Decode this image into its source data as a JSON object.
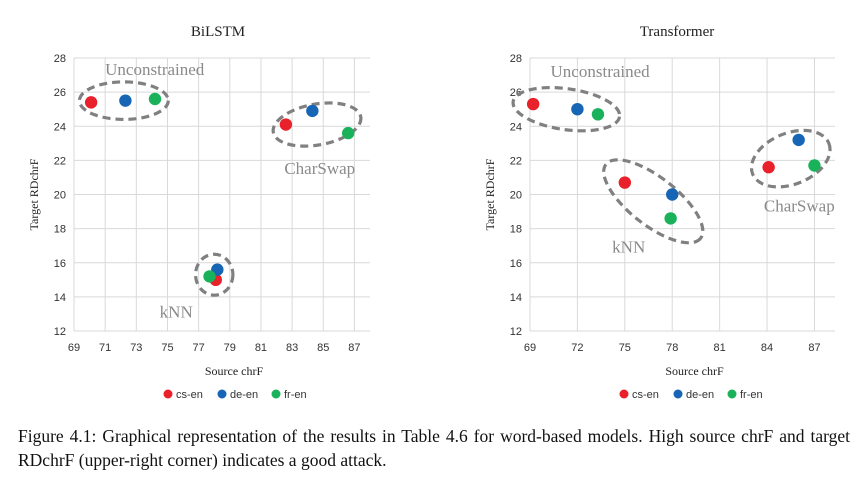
{
  "caption": "Figure 4.1:   Graphical representation of the results in Table 4.6 for word-based models.  High source chrF and target RDchrF (upper-right corner) indicates a good attack.",
  "colors": {
    "cs-en": "#e8212a",
    "de-en": "#1766b5",
    "fr-en": "#19b25a",
    "ellipse": "#808080"
  },
  "chart_data": [
    {
      "type": "scatter",
      "title": "BiLSTM",
      "xlabel": "Source chrF",
      "ylabel": "Target RDchrF",
      "xticks": [
        69,
        71,
        73,
        75,
        77,
        79,
        81,
        83,
        85,
        87
      ],
      "yticks": [
        12,
        14,
        16,
        18,
        20,
        22,
        24,
        26,
        28
      ],
      "xlim": [
        69,
        88
      ],
      "ylim": [
        12,
        28
      ],
      "grid": true,
      "legend": "bottom",
      "series": [
        {
          "name": "cs-en",
          "points": [
            [
              70.1,
              25.4
            ],
            [
              82.6,
              24.1
            ],
            [
              78.1,
              15.0
            ]
          ]
        },
        {
          "name": "de-en",
          "points": [
            [
              72.3,
              25.5
            ],
            [
              84.3,
              24.9
            ],
            [
              78.2,
              15.6
            ]
          ]
        },
        {
          "name": "fr-en",
          "points": [
            [
              74.2,
              25.6
            ],
            [
              86.6,
              23.6
            ],
            [
              77.7,
              15.2
            ]
          ]
        }
      ],
      "annotations": [
        {
          "text": "Unconstrained",
          "x": 71.0,
          "y": 27.0
        },
        {
          "text": "CharSwap",
          "x": 82.5,
          "y": 21.2
        },
        {
          "text": "kNN",
          "x": 74.5,
          "y": 12.8
        }
      ],
      "clusters": [
        {
          "cx": 72.2,
          "cy": 25.5,
          "rx": 2.85,
          "ry": 1.1,
          "rot": 0
        },
        {
          "cx": 84.6,
          "cy": 24.1,
          "rx": 2.85,
          "ry": 1.2,
          "rot": -10
        },
        {
          "cx": 78.0,
          "cy": 15.3,
          "rx": 1.2,
          "ry": 1.2,
          "rot": 0
        }
      ]
    },
    {
      "type": "scatter",
      "title": "Transformer",
      "xlabel": "Source chrF",
      "ylabel": "Target RDchrF",
      "xticks": [
        69,
        72,
        75,
        78,
        81,
        84,
        87
      ],
      "yticks": [
        12,
        14,
        16,
        18,
        20,
        22,
        24,
        26,
        28
      ],
      "xlim": [
        69,
        88.3
      ],
      "ylim": [
        12,
        28
      ],
      "grid": true,
      "legend": "bottom",
      "series": [
        {
          "name": "cs-en",
          "points": [
            [
              69.2,
              25.3
            ],
            [
              75.0,
              20.7
            ],
            [
              84.1,
              21.6
            ]
          ]
        },
        {
          "name": "de-en",
          "points": [
            [
              72.0,
              25.0
            ],
            [
              78.0,
              20.0
            ],
            [
              86.0,
              23.2
            ]
          ]
        },
        {
          "name": "fr-en",
          "points": [
            [
              73.3,
              24.7
            ],
            [
              77.9,
              18.6
            ],
            [
              87.0,
              21.7
            ]
          ]
        }
      ],
      "annotations": [
        {
          "text": "Unconstrained",
          "x": 70.3,
          "y": 26.9
        },
        {
          "text": "kNN",
          "x": 74.2,
          "y": 16.6
        },
        {
          "text": "CharSwap",
          "x": 83.8,
          "y": 19.0
        }
      ],
      "clusters": [
        {
          "cx": 71.3,
          "cy": 25.0,
          "rx": 3.4,
          "ry": 1.2,
          "rot": 8
        },
        {
          "cx": 76.8,
          "cy": 19.6,
          "rx": 3.8,
          "ry": 1.4,
          "rot": 38
        },
        {
          "cx": 85.5,
          "cy": 22.1,
          "rx": 2.6,
          "ry": 1.5,
          "rot": -22
        }
      ]
    }
  ]
}
